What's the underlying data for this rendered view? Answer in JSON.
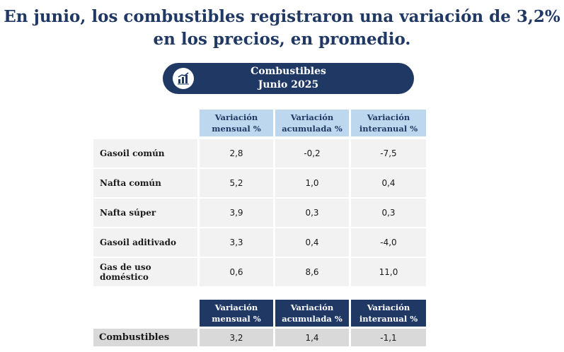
{
  "headline": {
    "line1": "En junio, los combustibles registraron una variación de 3,2%",
    "line2": "en los precios, en promedio."
  },
  "banner": {
    "title": "Combustibles",
    "subtitle": "Junio 2025",
    "icon": "bar-chart-icon"
  },
  "columns": [
    {
      "line1": "Variación",
      "line2": "mensual %"
    },
    {
      "line1": "Variación",
      "line2": "acumulada %"
    },
    {
      "line1": "Variación",
      "line2": "interanual %"
    }
  ],
  "rows": [
    {
      "label": "Gasoil común",
      "values": [
        "2,8",
        "-0,2",
        "-7,5"
      ]
    },
    {
      "label": "Nafta común",
      "values": [
        "5,2",
        "1,0",
        "0,4"
      ]
    },
    {
      "label": "Nafta súper",
      "values": [
        "3,9",
        "0,3",
        "0,3"
      ]
    },
    {
      "label": "Gasoil aditivado",
      "values": [
        "3,3",
        "0,4",
        "-4,0"
      ]
    },
    {
      "label": "Gas de uso doméstico",
      "values": [
        "0,6",
        "8,6",
        "11,0"
      ]
    }
  ],
  "summary": {
    "label": "Combustibles",
    "values": [
      "3,2",
      "1,4",
      "-1,1"
    ]
  },
  "colors": {
    "navy": "#1f3864",
    "light_blue": "#bdd7ee",
    "row_bg": "#f2f2f2",
    "total_bg": "#d9d9d9"
  }
}
